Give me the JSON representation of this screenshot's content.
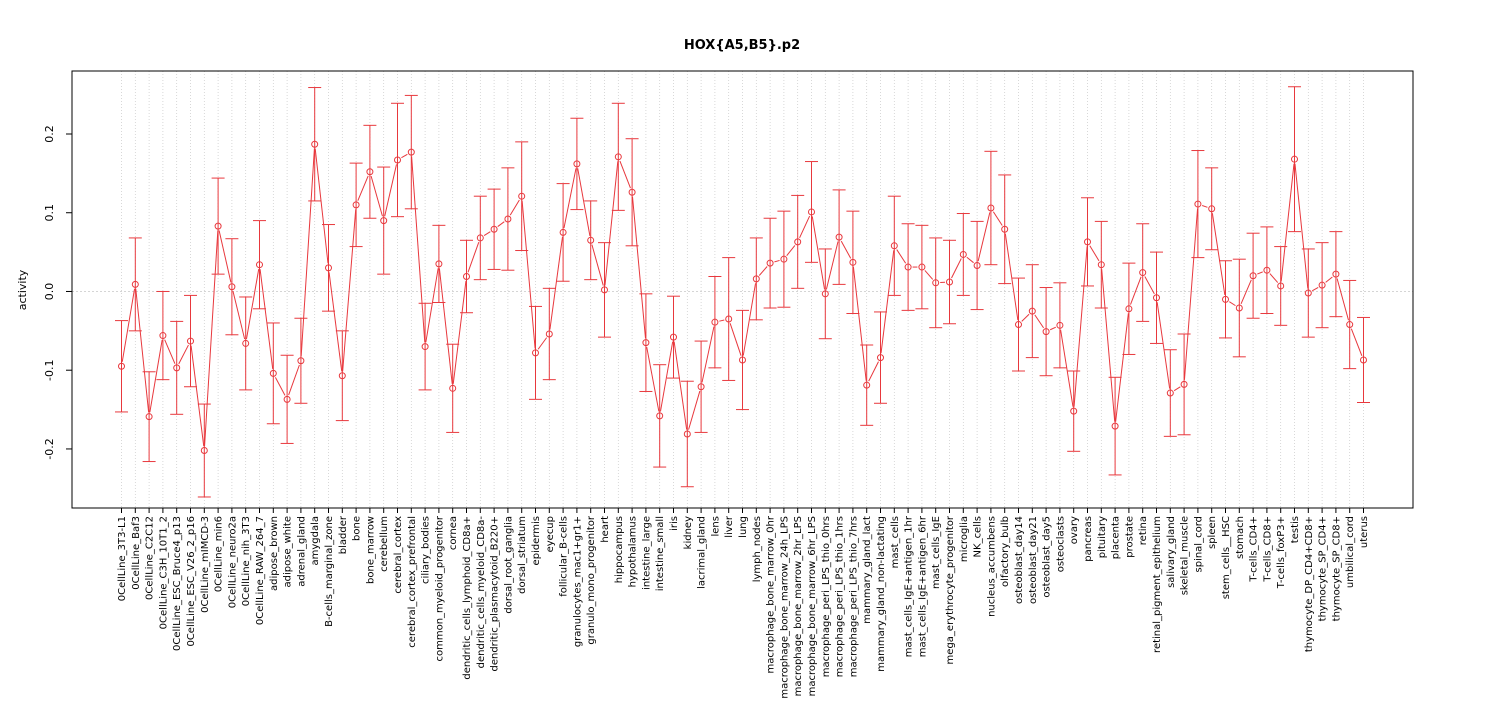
{
  "chart_data": {
    "type": "line",
    "title": "HOX{A5,B5}.p2",
    "xlabel": "",
    "ylabel": "activity",
    "ylim": [
      -0.275,
      0.28
    ],
    "yticks": [
      -0.2,
      -0.1,
      0.0,
      0.1,
      0.2
    ],
    "ytick_labels": [
      "-0.2",
      "-0.1",
      "0.0",
      "0.1",
      "0.2"
    ],
    "grid": true,
    "reference_line": 0.0,
    "colors": {
      "series": "#e8383d",
      "grid": "#c8c8c8",
      "axis": "#000000"
    },
    "categories": [
      "0CellLine_3T3-L1",
      "0CellLine_Baf3",
      "0CellLine_C2C12",
      "0CellLine_C3H_10T1_2",
      "0CellLine_ESC_Bruce4_p13",
      "0CellLine_ESC_V26_2_p16",
      "0CellLine_mIMCD-3",
      "0CellLine_min6",
      "0CellLine_neuro2a",
      "0CellLine_nih_3T3",
      "0CellLine_RAW_264_7",
      "adipose_brown",
      "adipose_white",
      "adrenal_gland",
      "amygdala",
      "B-cells_marginal_zone",
      "bladder",
      "bone",
      "bone_marrow",
      "cerebellum",
      "cerebral_cortex",
      "cerebral_cortex_prefrontal",
      "ciliary_bodies",
      "common_myeloid_progenitor",
      "cornea",
      "dendritic_cells_lymphoid_CD8a+",
      "dendritic_cells_myeloid_CD8a-",
      "dendritic_plasmacytoid_B220+",
      "dorsal_root_ganglia",
      "dorsal_striatum",
      "epidermis",
      "eyecup",
      "follicular_B-cells",
      "granulocytes_mac1+gr1+",
      "granulo_mono_progenitor",
      "heart",
      "hippocampus",
      "hypothalamus",
      "intestine_large",
      "intestine_small",
      "iris",
      "kidney",
      "lacrimal_gland",
      "lens",
      "liver",
      "lung",
      "lymph_nodes",
      "macrophage_bone_marrow_0hr",
      "macrophage_bone_marrow_24h_LPS",
      "macrophage_bone_marrow_2hr_LPS",
      "macrophage_bone_marrow_6hr_LPS",
      "macrophage_peri_LPS_thio_0hrs",
      "macrophage_peri_LPS_thio_1hrs",
      "macrophage_peri_LPS_thio_7hrs",
      "mammary_gland_lact",
      "mammary_gland_non-lactating",
      "mast_cells",
      "mast_cells_IgE+antigen_1hr",
      "mast_cells_IgE+antigen_6hr",
      "mast_cells_IgE",
      "mega_erythrocyte_progenitor",
      "microglia",
      "NK_cells",
      "nucleus_accumbens",
      "olfactory_bulb",
      "osteoblast_day14",
      "osteoblast_day21",
      "osteoblast_day5",
      "osteoclasts",
      "ovary",
      "pancreas",
      "pituitary",
      "placenta",
      "prostate",
      "retina",
      "retinal_pigment_epithelium",
      "salivary_gland",
      "skeletal_muscle",
      "spinal_cord",
      "spleen",
      "stem_cells__HSC",
      "stomach",
      "T-cells_CD4+",
      "T-cells_CD8+",
      "T-cells_foxP3+",
      "testis",
      "thymocyte_DP_CD4+CD8+",
      "thymocyte_SP_CD4+",
      "thymocyte_SP_CD8+",
      "umbilical_cord",
      "uterus"
    ],
    "series": [
      {
        "values": [
          -0.095,
          0.009,
          -0.159,
          -0.056,
          -0.097,
          -0.063,
          -0.202,
          0.083,
          0.006,
          -0.066,
          0.034,
          -0.104,
          -0.137,
          -0.088,
          0.187,
          0.03,
          -0.107,
          0.11,
          0.152,
          0.09,
          0.167,
          0.177,
          -0.07,
          0.035,
          -0.123,
          0.019,
          0.068,
          0.079,
          0.092,
          0.121,
          -0.078,
          -0.054,
          0.075,
          0.162,
          0.065,
          0.002,
          0.171,
          0.126,
          -0.065,
          -0.158,
          -0.058,
          -0.181,
          -0.121,
          -0.039,
          -0.035,
          -0.087,
          0.016,
          0.036,
          0.041,
          0.063,
          0.101,
          -0.003,
          0.069,
          0.037,
          -0.119,
          -0.084,
          0.058,
          0.031,
          0.031,
          0.011,
          0.012,
          0.047,
          0.033,
          0.106,
          0.079,
          -0.042,
          -0.025,
          -0.051,
          -0.043,
          -0.152,
          0.063,
          0.034,
          -0.171,
          -0.022,
          0.024,
          -0.008,
          -0.129,
          -0.118,
          0.111,
          0.105,
          -0.01,
          -0.021,
          0.02,
          0.027,
          0.007,
          0.168,
          -0.002,
          0.008,
          0.022,
          -0.042,
          -0.087
        ],
        "errors": [
          0.058,
          0.059,
          0.057,
          0.056,
          0.059,
          0.058,
          0.059,
          0.061,
          0.061,
          0.059,
          0.056,
          0.064,
          0.056,
          0.054,
          0.072,
          0.055,
          0.057,
          0.053,
          0.059,
          0.068,
          0.072,
          0.072,
          0.055,
          0.049,
          0.056,
          0.046,
          0.053,
          0.051,
          0.065,
          0.069,
          0.059,
          0.058,
          0.062,
          0.058,
          0.05,
          0.06,
          0.068,
          0.068,
          0.062,
          0.065,
          0.052,
          0.067,
          0.058,
          0.058,
          0.078,
          0.063,
          0.052,
          0.057,
          0.061,
          0.059,
          0.064,
          0.057,
          0.06,
          0.065,
          0.051,
          0.058,
          0.063,
          0.055,
          0.053,
          0.057,
          0.053,
          0.052,
          0.056,
          0.072,
          0.069,
          0.059,
          0.059,
          0.056,
          0.054,
          0.051,
          0.056,
          0.055,
          0.062,
          0.058,
          0.062,
          0.058,
          0.055,
          0.064,
          0.068,
          0.052,
          0.049,
          0.062,
          0.054,
          0.055,
          0.05,
          0.092,
          0.056,
          0.054,
          0.054,
          0.056,
          0.054
        ]
      }
    ]
  }
}
